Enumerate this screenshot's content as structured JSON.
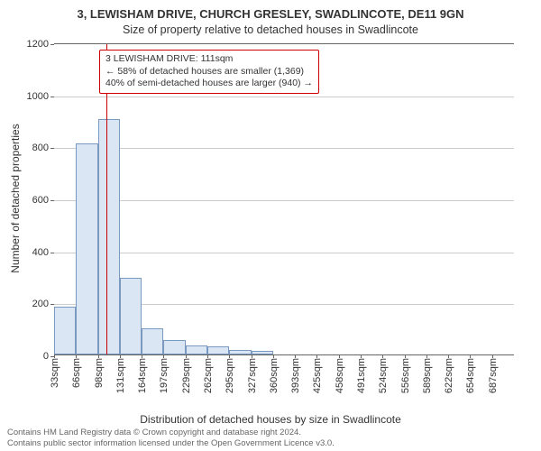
{
  "title_main": "3, LEWISHAM DRIVE, CHURCH GRESLEY, SWADLINCOTE, DE11 9GN",
  "title_sub": "Size of property relative to detached houses in Swadlincote",
  "y_axis_label": "Number of detached properties",
  "x_axis_label": "Distribution of detached houses by size in Swadlincote",
  "footer_line1": "Contains HM Land Registry data © Crown copyright and database right 2024.",
  "footer_line2": "Contains public sector information licensed under the Open Government Licence v3.0.",
  "chart": {
    "type": "histogram",
    "ylim": [
      0,
      1200
    ],
    "ytick_step": 200,
    "yticks": [
      0,
      200,
      400,
      600,
      800,
      1000,
      1200
    ],
    "x_categories": [
      "33sqm",
      "66sqm",
      "98sqm",
      "131sqm",
      "164sqm",
      "197sqm",
      "229sqm",
      "262sqm",
      "295sqm",
      "327sqm",
      "360sqm",
      "393sqm",
      "425sqm",
      "458sqm",
      "491sqm",
      "524sqm",
      "556sqm",
      "589sqm",
      "622sqm",
      "654sqm",
      "687sqm"
    ],
    "values": [
      185,
      810,
      905,
      295,
      100,
      55,
      35,
      30,
      18,
      15,
      0,
      0,
      0,
      0,
      0,
      0,
      0,
      0,
      0,
      0,
      0
    ],
    "bar_fill": "#dbe6f4",
    "bar_stroke": "#7a99c0",
    "marker_color": "#cc0000",
    "marker_position_index": 2.4,
    "grid_color": "#cccccc",
    "axis_color": "#666666",
    "background_color": "#ffffff",
    "bar_width_ratio": 1.0,
    "tick_fontsize": 11,
    "label_fontsize": 12,
    "title_fontsize": 13
  },
  "annotation": {
    "line1": "3 LEWISHAM DRIVE: 111sqm",
    "line2": "← 58% of detached houses are smaller (1,369)",
    "line3": "40% of semi-detached houses are larger (940) →",
    "border_color": "#cc0000",
    "text_color": "#333333"
  }
}
